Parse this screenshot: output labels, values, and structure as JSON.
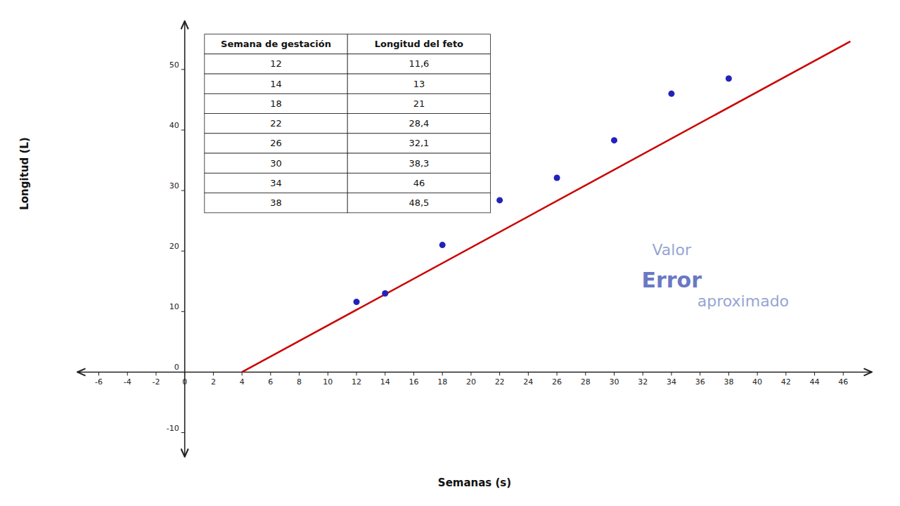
{
  "chart_data": {
    "type": "scatter",
    "x_label": "Semanas (s)",
    "y_label": "Longitud (L)",
    "xlim": [
      -7.5,
      48
    ],
    "ylim": [
      -14,
      58
    ],
    "xticks": [
      -6,
      -4,
      -2,
      0,
      2,
      4,
      6,
      8,
      10,
      12,
      14,
      16,
      18,
      20,
      22,
      24,
      26,
      28,
      30,
      32,
      34,
      36,
      38,
      40,
      42,
      44,
      46
    ],
    "yticks": [
      -10,
      0,
      10,
      20,
      30,
      40,
      50
    ],
    "grid": false,
    "series": [
      {
        "type": "scatter",
        "color": "#2222BB",
        "x": [
          12,
          14,
          18,
          22,
          26,
          30,
          34,
          38
        ],
        "values": [
          11.6,
          13,
          21,
          28.4,
          32.1,
          38.3,
          46,
          48.5
        ]
      },
      {
        "type": "line",
        "color": "#CC0000",
        "x": [
          4,
          46.5
        ],
        "values": [
          0.001,
          54.656
        ]
      }
    ],
    "table": {
      "headers": [
        "Semana de gestación",
        "Longitud del feto"
      ],
      "rows": [
        [
          "12",
          "11,6"
        ],
        [
          "14",
          "13"
        ],
        [
          "18",
          "21"
        ],
        [
          "22",
          "28,4"
        ],
        [
          "26",
          "32,1"
        ],
        [
          "30",
          "38,3"
        ],
        [
          "34",
          "46"
        ],
        [
          "38",
          "48,5"
        ]
      ]
    },
    "annotations": [
      {
        "text": "Valor",
        "color": "#8899CC"
      },
      {
        "text": "Error",
        "color": "#5566BB"
      },
      {
        "text": "aproximado",
        "color": "#8899CC"
      }
    ]
  }
}
